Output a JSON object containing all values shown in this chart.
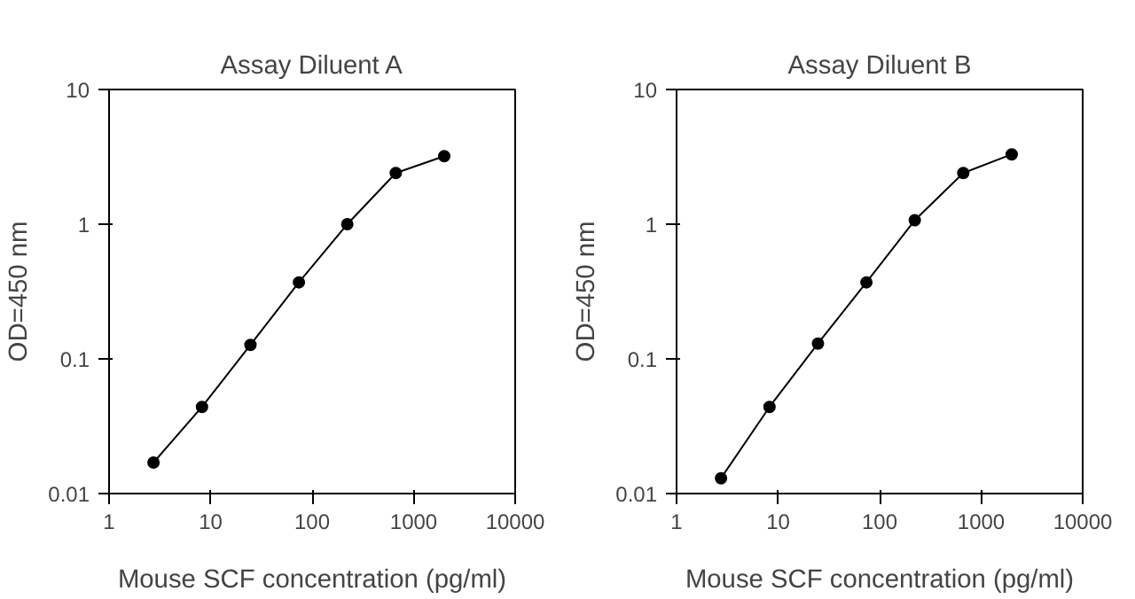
{
  "chart_data": [
    {
      "type": "line",
      "title": "Assay Diluent A",
      "xlabel": "Mouse SCF concentration (pg/ml)",
      "ylabel": "OD=450 nm",
      "log": "xy",
      "x": [
        2.74,
        8.23,
        24.7,
        74.1,
        222,
        667,
        2000
      ],
      "series": [
        {
          "color": "#000000",
          "values": [
            0.017,
            0.044,
            0.127,
            0.37,
            1.0,
            2.4,
            3.2
          ]
        }
      ],
      "xlim": [
        1,
        10000
      ],
      "xticks": [
        1,
        10,
        100,
        1000,
        10000
      ],
      "ylim": [
        0.01,
        10
      ],
      "yticks": [
        0.01,
        0.1,
        1,
        10
      ],
      "marker": "circle",
      "line_style": "solid"
    },
    {
      "type": "line",
      "title": "Assay Diluent B",
      "xlabel": "Mouse SCF concentration (pg/ml)",
      "ylabel": "OD=450 nm",
      "log": "xy",
      "x": [
        2.74,
        8.23,
        24.7,
        74.1,
        222,
        667,
        2000
      ],
      "series": [
        {
          "color": "#000000",
          "values": [
            0.013,
            0.044,
            0.13,
            0.37,
            1.07,
            2.4,
            3.3
          ]
        }
      ],
      "xlim": [
        1,
        10000
      ],
      "xticks": [
        1,
        10,
        100,
        1000,
        10000
      ],
      "ylim": [
        0.01,
        10
      ],
      "yticks": [
        0.01,
        0.1,
        1,
        10
      ],
      "marker": "circle",
      "line_style": "solid"
    }
  ]
}
